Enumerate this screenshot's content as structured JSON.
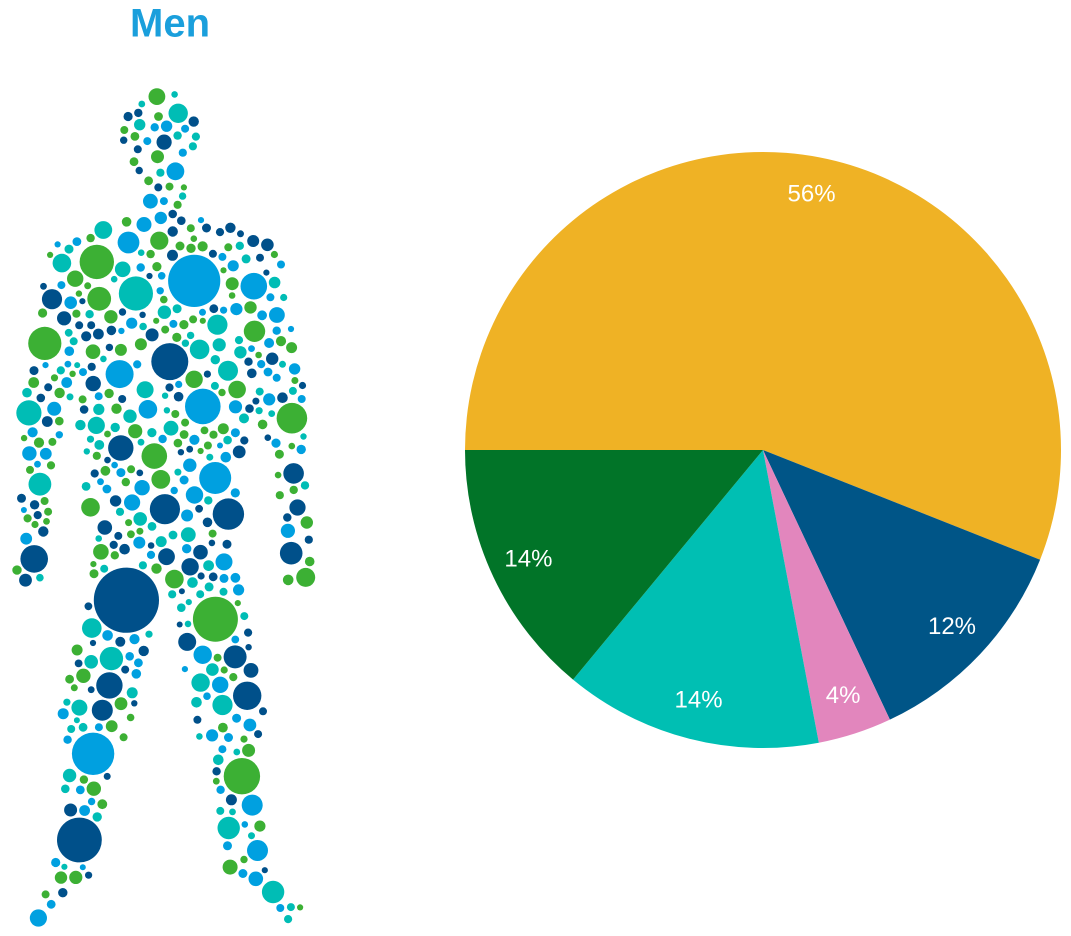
{
  "chart_data": {
    "type": "pie",
    "title": "Men",
    "categories": [
      null,
      null,
      null,
      null,
      null
    ],
    "values": [
      56,
      12,
      4,
      14,
      14
    ],
    "value_labels": [
      "56%",
      "12%",
      "4%",
      "14%",
      "14%"
    ],
    "colors": [
      "#efb225",
      "#005587",
      "#e286bd",
      "#00bfb3",
      "#017428"
    ]
  }
}
